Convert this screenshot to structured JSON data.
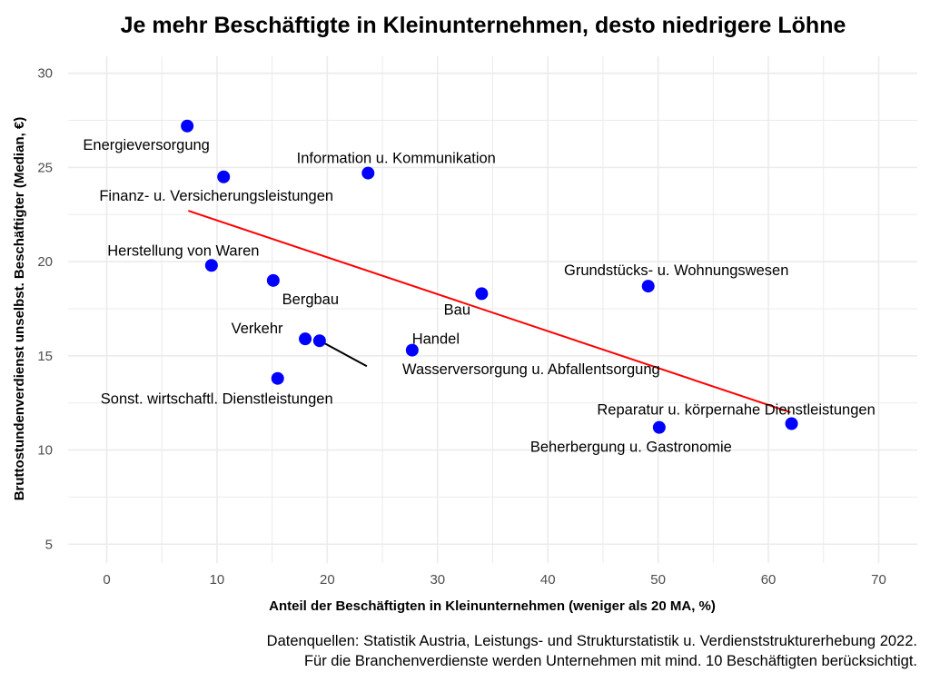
{
  "chart_data": {
    "type": "scatter",
    "title": "Je mehr Beschäftigte in Kleinunternehmen, desto niedrigere Löhne",
    "xlabel": "Anteil der Beschäftigten in Kleinunternehmen (weniger als 20 MA, %)",
    "ylabel": "Bruttostundenverdienst unselbst. Beschäftigter (Median, €)",
    "xlim": [
      -3.5,
      73.5
    ],
    "ylim": [
      4,
      30.9
    ],
    "xticks": [
      0,
      10,
      20,
      30,
      40,
      50,
      60,
      70
    ],
    "yticks": [
      5,
      10,
      15,
      20,
      25,
      30
    ],
    "grid": true,
    "point_color": "#0000ff",
    "trend_color": "#ff0000",
    "points": [
      {
        "label": "Energieversorgung",
        "x": 7.3,
        "y": 27.2
      },
      {
        "label": "Finanz- u. Versicherungsleistungen",
        "x": 10.6,
        "y": 24.5
      },
      {
        "label": "Information u. Kommunikation",
        "x": 23.7,
        "y": 24.7
      },
      {
        "label": "Herstellung von Waren",
        "x": 9.5,
        "y": 19.8
      },
      {
        "label": "Bergbau",
        "x": 15.1,
        "y": 19.0
      },
      {
        "label": "Bau",
        "x": 34.0,
        "y": 18.3
      },
      {
        "label": "Grundstücks- u. Wohnungswesen",
        "x": 49.1,
        "y": 18.7
      },
      {
        "label": "Verkehr",
        "x": 18.0,
        "y": 15.9
      },
      {
        "label": "Wasserversorgung u. Abfallentsorgung",
        "x": 19.3,
        "y": 15.8
      },
      {
        "label": "Handel",
        "x": 27.7,
        "y": 15.3
      },
      {
        "label": "Sonst. wirtschaftl. Dienstleistungen",
        "x": 15.5,
        "y": 13.8
      },
      {
        "label": "Reparatur u. körpernahe Dienstleistungen",
        "x": 62.1,
        "y": 11.4
      },
      {
        "label": "Beherbergung u. Gastronomie",
        "x": 50.1,
        "y": 11.2
      }
    ],
    "trend_line": {
      "x": [
        7.4,
        62.0
      ],
      "y": [
        22.7,
        12.0
      ]
    },
    "caption": [
      "Datenquellen: Statistik Austria, Leistungs- und Strukturstatistik u. Verdienststrukturerhebung 2022.",
      "Für die Branchenverdienste werden Unternehmen mit mind. 10 Beschäftigten berücksichtigt."
    ]
  }
}
